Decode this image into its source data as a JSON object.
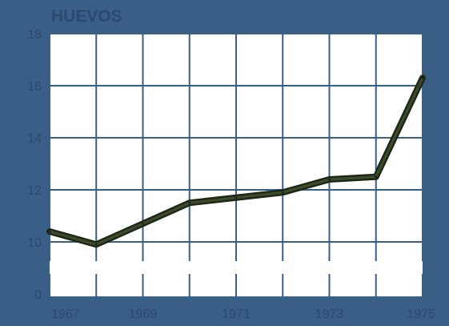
{
  "chart_data": {
    "type": "line",
    "title": "HUEVOS",
    "xlabel": "",
    "ylabel": "",
    "x": [
      1967,
      1968,
      1969,
      1970,
      1971,
      1972,
      1973,
      1974,
      1975
    ],
    "x_tick_labels": [
      "1967",
      "1969",
      "1971",
      "1973",
      "1975"
    ],
    "y_tick_labels": [
      "0",
      "10",
      "12",
      "14",
      "16",
      "18"
    ],
    "ylim_visible": [
      10,
      18
    ],
    "y_axis_break": true,
    "grid": true,
    "series": [
      {
        "values": [
          10.4,
          9.9,
          10.7,
          11.5,
          11.7,
          11.9,
          12.4,
          12.5,
          16.3
        ]
      }
    ],
    "colors": {
      "background": "#3a5f86",
      "plot_area": "#ffffff",
      "line": "#1e2818",
      "line_highlight": "#5a6a3a",
      "grid": "#3a5f86",
      "text": "#2a4a70"
    }
  }
}
